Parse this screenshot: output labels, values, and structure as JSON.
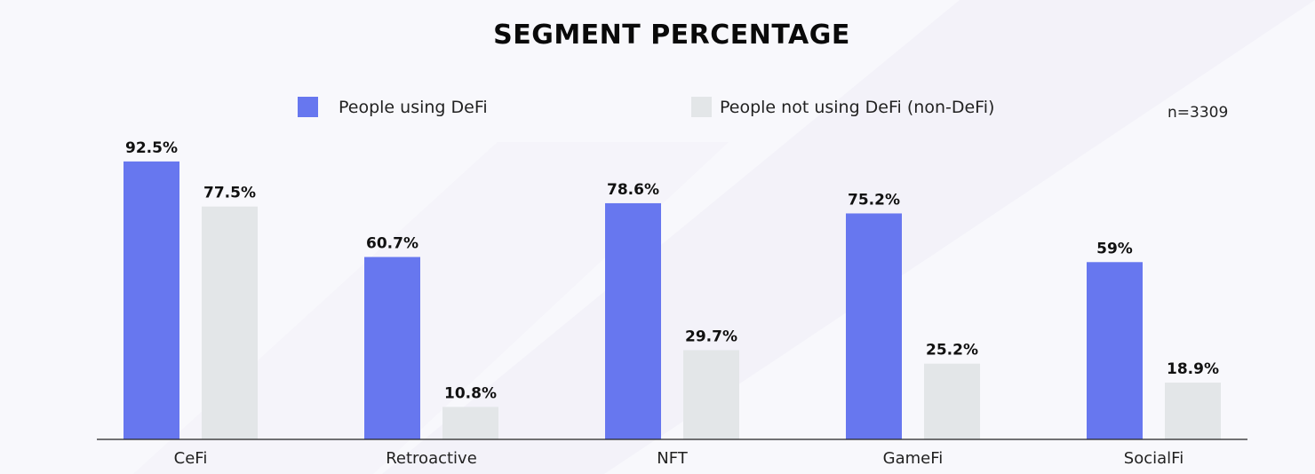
{
  "chart_data": {
    "type": "bar",
    "title": "SEGMENT PERCENTAGE",
    "annotation": "n=3309",
    "categories": [
      "CeFi",
      "Retroactive",
      "NFT",
      "GameFi",
      "SocialFi"
    ],
    "series": [
      {
        "name": "People using DeFi",
        "color": "#6777ef",
        "values": [
          92.5,
          60.7,
          78.6,
          75.2,
          59
        ],
        "labels": [
          "92.5%",
          "60.7%",
          "78.6%",
          "75.2%",
          "59%"
        ]
      },
      {
        "name": "People not using DeFi (non-DeFi)",
        "color": "#e3e6e8",
        "values": [
          77.5,
          10.8,
          29.7,
          25.2,
          18.9
        ],
        "labels": [
          "77.5%",
          "10.8%",
          "29.7%",
          "25.2%",
          "18.9%"
        ]
      }
    ],
    "ylim": [
      0,
      100
    ],
    "legend": "top",
    "grid": false
  }
}
